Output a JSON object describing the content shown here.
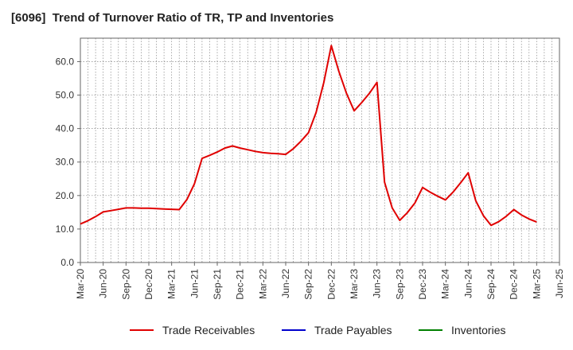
{
  "title": "[6096]  Trend of Turnover Ratio of TR, TP and Inventories",
  "chart_data": {
    "type": "line",
    "x_ticks": [
      "Mar-20",
      "Jun-20",
      "Sep-20",
      "Dec-20",
      "Mar-21",
      "Jun-21",
      "Sep-21",
      "Dec-21",
      "Mar-22",
      "Jun-22",
      "Sep-22",
      "Dec-22",
      "Mar-23",
      "Jun-23",
      "Sep-23",
      "Dec-23",
      "Mar-24",
      "Jun-24",
      "Sep-24",
      "Dec-24",
      "Mar-25",
      "Jun-25"
    ],
    "y_ticks": [
      "0.0",
      "10.0",
      "20.0",
      "30.0",
      "40.0",
      "50.0",
      "60.0"
    ],
    "ylim": [
      0,
      67
    ],
    "grid": true,
    "legend_position": "bottom",
    "series": [
      {
        "name": "Trade Receivables",
        "color": "#e00000",
        "x_months": [
          0,
          1,
          2,
          3,
          4,
          5,
          6,
          7,
          8,
          9,
          10,
          11,
          12,
          13,
          14,
          15,
          16,
          17,
          18,
          19,
          20,
          21,
          22,
          23,
          24,
          25,
          26,
          27,
          28,
          29,
          30,
          31,
          32,
          33,
          34,
          35,
          36,
          37,
          38,
          39,
          40,
          41,
          42,
          43,
          44,
          45,
          46,
          47,
          48,
          49,
          50,
          51,
          52,
          53,
          54,
          55,
          56,
          57,
          58,
          59,
          60
        ],
        "values": [
          11.5,
          12.5,
          13.7,
          15.1,
          15.5,
          15.9,
          16.3,
          16.3,
          16.2,
          16.2,
          16.1,
          16.0,
          15.9,
          15.8,
          18.8,
          23.5,
          31.1,
          32.0,
          33.0,
          34.2,
          34.8,
          34.2,
          33.7,
          33.2,
          32.8,
          32.6,
          32.5,
          32.3,
          34.0,
          36.2,
          38.8,
          44.8,
          53.7,
          64.8,
          57.0,
          50.5,
          45.3,
          47.8,
          50.5,
          53.8,
          24.0,
          16.3,
          12.6,
          14.9,
          17.8,
          22.4,
          21.0,
          19.8,
          18.7,
          21.0,
          23.8,
          26.8,
          18.4,
          14.0,
          11.1,
          12.2,
          13.8,
          15.8,
          14.2,
          13.0,
          12.1
        ]
      },
      {
        "name": "Trade Payables",
        "color": "#0000cc",
        "x_months": [],
        "values": []
      },
      {
        "name": "Inventories",
        "color": "#008000",
        "x_months": [],
        "values": []
      }
    ]
  }
}
